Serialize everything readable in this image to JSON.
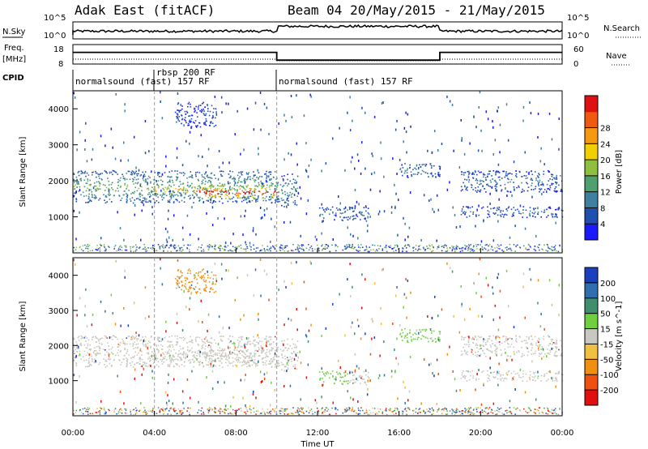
{
  "header": {
    "title_left": "Adak East (fitACF)",
    "title_right": "Beam 04 20/May/2015 - 21/May/2015"
  },
  "sky_panel": {
    "left_label": "N.Sky",
    "right_label": "N.Search",
    "left_ticks": [
      "10^5",
      "10^0"
    ],
    "right_ticks": [
      "10^5",
      "10^0"
    ]
  },
  "freq_panel": {
    "left_label_1": "Freq.",
    "left_label_2": "[MHz]",
    "right_label": "Nave",
    "left_ticks": [
      "18",
      "8"
    ],
    "right_ticks": [
      "60",
      "0"
    ]
  },
  "cpid_panel": {
    "label": "CPID",
    "segments": [
      "normalsound (fast) 157 RF",
      "rbsp 200 RF",
      "normalsound (fast) 157 RF"
    ]
  },
  "x_axis": {
    "label": "Time UT",
    "ticks": [
      "00:00",
      "04:00",
      "08:00",
      "12:00",
      "16:00",
      "20:00",
      "00:00"
    ]
  },
  "y_axis": {
    "label": "Slant Range [km]",
    "ticks": [
      "1000",
      "2000",
      "3000",
      "4000"
    ]
  },
  "power_colorbar": {
    "label": "Power [dB]",
    "ticks": [
      "4",
      "8",
      "12",
      "16",
      "20",
      "24",
      "28"
    ],
    "colors": [
      "#1a1aff",
      "#1f4fb0",
      "#3f7fa0",
      "#4f9f6f",
      "#8fbf3f",
      "#f0d000",
      "#f59a10",
      "#f05a10",
      "#e01010"
    ]
  },
  "velocity_colorbar": {
    "label": "Velocity [m s^-1]",
    "ticks": [
      "200",
      "100",
      "50",
      "15",
      "-15",
      "-50",
      "-100",
      "-200"
    ],
    "colors": [
      "#1a3fbf",
      "#2f6fb0",
      "#3f8f6f",
      "#6fcf3f",
      "#c8c8c0",
      "#f0c040",
      "#f09010",
      "#f05010",
      "#e01010"
    ]
  },
  "chart_data": {
    "type": "heatmap",
    "x": [
      "00:00",
      "04:00",
      "08:00",
      "12:00",
      "16:00",
      "20:00",
      "00:00"
    ],
    "ylim": [
      0,
      4500
    ],
    "ylabel": "Slant Range [km]",
    "xlabel": "Time UT",
    "mode_changes_hours": [
      4,
      10,
      18
    ],
    "frequency_MHz": [
      {
        "start": 0,
        "end": 4,
        "value": 14
      },
      {
        "start": 4,
        "end": 10,
        "value": 14
      },
      {
        "start": 10,
        "end": 18,
        "value": 10
      },
      {
        "start": 18,
        "end": 24,
        "value": 14
      }
    ],
    "power_bands": [
      {
        "t0": 0.0,
        "t1": 10.0,
        "r_lo": 1400,
        "r_hi": 2300,
        "level": 12
      },
      {
        "t0": 6.0,
        "t1": 10.0,
        "r_lo": 1500,
        "r_hi": 1900,
        "level": 26
      },
      {
        "t0": 4.0,
        "t1": 6.0,
        "r_lo": 1600,
        "r_hi": 1900,
        "level": 20
      },
      {
        "t0": 10.0,
        "t1": 11.0,
        "r_lo": 1300,
        "r_hi": 2200,
        "level": 10
      },
      {
        "t0": 12.0,
        "t1": 14.5,
        "r_lo": 900,
        "r_hi": 1300,
        "level": 8
      },
      {
        "t0": 19.0,
        "t1": 24.0,
        "r_lo": 1000,
        "r_hi": 1300,
        "level": 6
      },
      {
        "t0": 19.0,
        "t1": 24.0,
        "r_lo": 1700,
        "r_hi": 2300,
        "level": 7
      },
      {
        "t0": 16.0,
        "t1": 18.0,
        "r_lo": 2100,
        "r_hi": 2500,
        "level": 8
      },
      {
        "t0": 5.0,
        "t1": 7.0,
        "r_lo": 3500,
        "r_hi": 4200,
        "level": 4
      }
    ]
  }
}
